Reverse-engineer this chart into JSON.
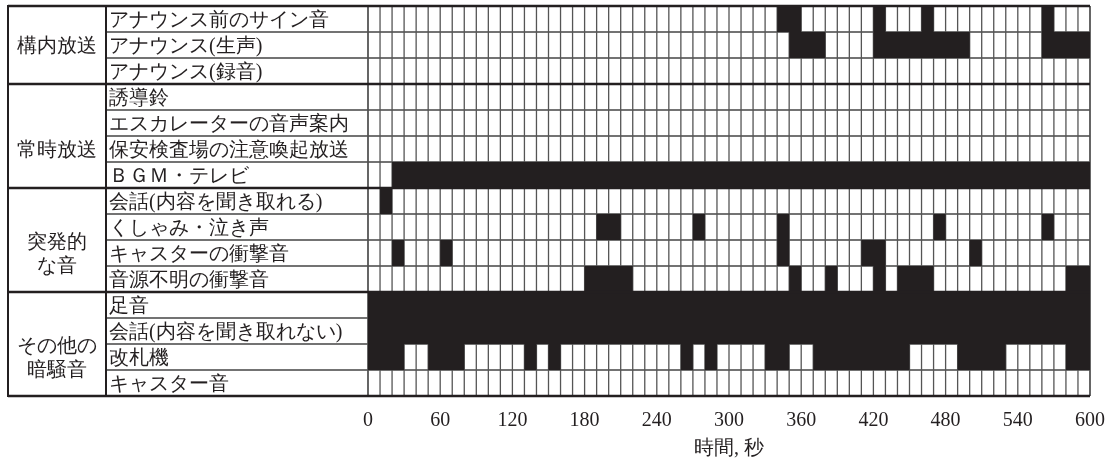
{
  "chart_data": {
    "type": "bar",
    "orientation": "horizontal",
    "xlabel": "時間, 秒",
    "grid": "x",
    "categories": [
      "アナウンス前のサイン音",
      "アナウンス(生声)",
      "アナウンス(録音)",
      "誘導鈴",
      "エスカレーターの音声案内",
      "保安検査場の注意喚起放送",
      "ＢＧＭ・テレビ",
      "会話(内容を聞き取れる)",
      "くしゃみ・泣き声",
      "キャスターの衝撃音",
      "音源不明の衝撃音",
      "足音",
      "会話(内容を聞き取れない)",
      "改札機",
      "キャスター音"
    ],
    "y2_categories": [
      null,
      "構内放送",
      null,
      null,
      null,
      "常時放送",
      null,
      null,
      null,
      "突発的な音",
      null,
      null,
      null,
      "その他の暗騒音",
      null
    ],
    "xlim": [
      0,
      600
    ],
    "xticks": [
      0,
      {
        "value": 10,
        "label": null
      },
      {
        "value": 20,
        "label": null
      },
      {
        "value": 30,
        "label": null
      },
      {
        "value": 40,
        "label": null
      },
      {
        "value": 50,
        "label": null
      },
      60,
      {
        "value": 70,
        "label": null
      },
      {
        "value": 80,
        "label": null
      },
      {
        "value": 90,
        "label": null
      },
      {
        "value": 100,
        "label": null
      },
      {
        "value": 110,
        "label": null
      },
      120,
      {
        "value": 130,
        "label": null
      },
      {
        "value": 140,
        "label": null
      },
      {
        "value": 150,
        "label": null
      },
      {
        "value": 160,
        "label": null
      },
      {
        "value": 170,
        "label": null
      },
      180,
      {
        "value": 190,
        "label": null
      },
      {
        "value": 200,
        "label": null
      },
      {
        "value": 210,
        "label": null
      },
      {
        "value": 220,
        "label": null
      },
      {
        "value": 230,
        "label": null
      },
      240,
      {
        "value": 250,
        "label": null
      },
      {
        "value": 260,
        "label": null
      },
      {
        "value": 270,
        "label": null
      },
      {
        "value": 280,
        "label": null
      },
      {
        "value": 290,
        "label": null
      },
      300,
      {
        "value": 310,
        "label": null
      },
      {
        "value": 320,
        "label": null
      },
      {
        "value": 330,
        "label": null
      },
      {
        "value": 340,
        "label": null
      },
      {
        "value": 350,
        "label": null
      },
      360,
      {
        "value": 370,
        "label": null
      },
      {
        "value": 380,
        "label": null
      },
      {
        "value": 390,
        "label": null
      },
      {
        "value": 400,
        "label": null
      },
      {
        "value": 410,
        "label": null
      },
      420,
      {
        "value": 430,
        "label": null
      },
      {
        "value": 440,
        "label": null
      },
      {
        "value": 450,
        "label": null
      },
      {
        "value": 460,
        "label": null
      },
      {
        "value": 470,
        "label": null
      },
      480,
      {
        "value": 490,
        "label": null
      },
      {
        "value": 500,
        "label": null
      },
      {
        "value": 510,
        "label": null
      },
      {
        "value": 520,
        "label": null
      },
      {
        "value": 530,
        "label": null
      },
      540,
      {
        "value": 550,
        "label": null
      },
      {
        "value": 560,
        "label": null
      },
      {
        "value": 570,
        "label": null
      },
      {
        "value": 580,
        "label": null
      },
      {
        "value": 590,
        "label": null
      },
      600
    ],
    "series": [
      {
        "color": "#231f20",
        "values": [
          20,
          30,
          null,
          null,
          null,
          null,
          580,
          10,
          20,
          10,
          40,
          600,
          600,
          30,
          null
        ],
        "base": [
          340,
          350,
          null,
          null,
          null,
          null,
          20,
          10,
          190,
          20,
          180,
          0,
          0,
          0,
          null
        ]
      },
      {
        "color": "#231f20",
        "values": [
          10,
          80,
          null,
          null,
          null,
          null,
          null,
          null,
          10,
          10,
          10,
          null,
          null,
          30,
          null
        ],
        "base": [
          420,
          420,
          null,
          null,
          null,
          null,
          null,
          null,
          270,
          60,
          350,
          null,
          null,
          50,
          null
        ]
      },
      {
        "color": "#231f20",
        "values": [
          10,
          40,
          null,
          null,
          null,
          null,
          null,
          null,
          10,
          10,
          10,
          null,
          null,
          10,
          null
        ],
        "base": [
          460,
          560,
          null,
          null,
          null,
          null,
          null,
          null,
          340,
          340,
          380,
          null,
          null,
          130,
          null
        ]
      },
      {
        "color": "#231f20",
        "values": [
          10,
          null,
          null,
          null,
          null,
          null,
          null,
          null,
          10,
          20,
          10,
          null,
          null,
          10,
          null
        ],
        "base": [
          560,
          null,
          null,
          null,
          null,
          null,
          null,
          null,
          470,
          410,
          420,
          null,
          null,
          150,
          null
        ]
      },
      {
        "color": "#231f20",
        "values": [
          null,
          null,
          null,
          null,
          null,
          null,
          null,
          null,
          10,
          10,
          30,
          null,
          null,
          10,
          null
        ],
        "base": [
          null,
          null,
          null,
          null,
          null,
          null,
          null,
          null,
          560,
          500,
          440,
          null,
          null,
          260,
          null
        ]
      },
      {
        "color": "#231f20",
        "values": [
          null,
          null,
          null,
          null,
          null,
          null,
          null,
          null,
          null,
          null,
          20,
          null,
          null,
          10,
          null
        ],
        "base": [
          null,
          null,
          null,
          null,
          null,
          null,
          null,
          null,
          null,
          null,
          580,
          null,
          null,
          280,
          null
        ]
      },
      {
        "color": "#231f20",
        "values": [
          null,
          null,
          null,
          null,
          null,
          null,
          null,
          null,
          null,
          null,
          null,
          null,
          null,
          20,
          null
        ],
        "base": [
          null,
          null,
          null,
          null,
          null,
          null,
          null,
          null,
          null,
          null,
          null,
          null,
          null,
          330,
          null
        ]
      },
      {
        "color": "#231f20",
        "values": [
          null,
          null,
          null,
          null,
          null,
          null,
          null,
          null,
          null,
          null,
          null,
          null,
          null,
          80,
          null
        ],
        "base": [
          null,
          null,
          null,
          null,
          null,
          null,
          null,
          null,
          null,
          null,
          null,
          null,
          null,
          370,
          null
        ]
      },
      {
        "color": "#231f20",
        "values": [
          null,
          null,
          null,
          null,
          null,
          null,
          null,
          null,
          null,
          null,
          null,
          null,
          null,
          40,
          null
        ],
        "base": [
          null,
          null,
          null,
          null,
          null,
          null,
          null,
          null,
          null,
          null,
          null,
          null,
          null,
          490,
          null
        ]
      },
      {
        "color": "#231f20",
        "values": [
          null,
          null,
          null,
          null,
          null,
          null,
          null,
          null,
          null,
          null,
          null,
          null,
          null,
          20,
          null
        ],
        "base": [
          null,
          null,
          null,
          null,
          null,
          null,
          null,
          null,
          null,
          null,
          null,
          null,
          null,
          580,
          null
        ]
      }
    ]
  }
}
